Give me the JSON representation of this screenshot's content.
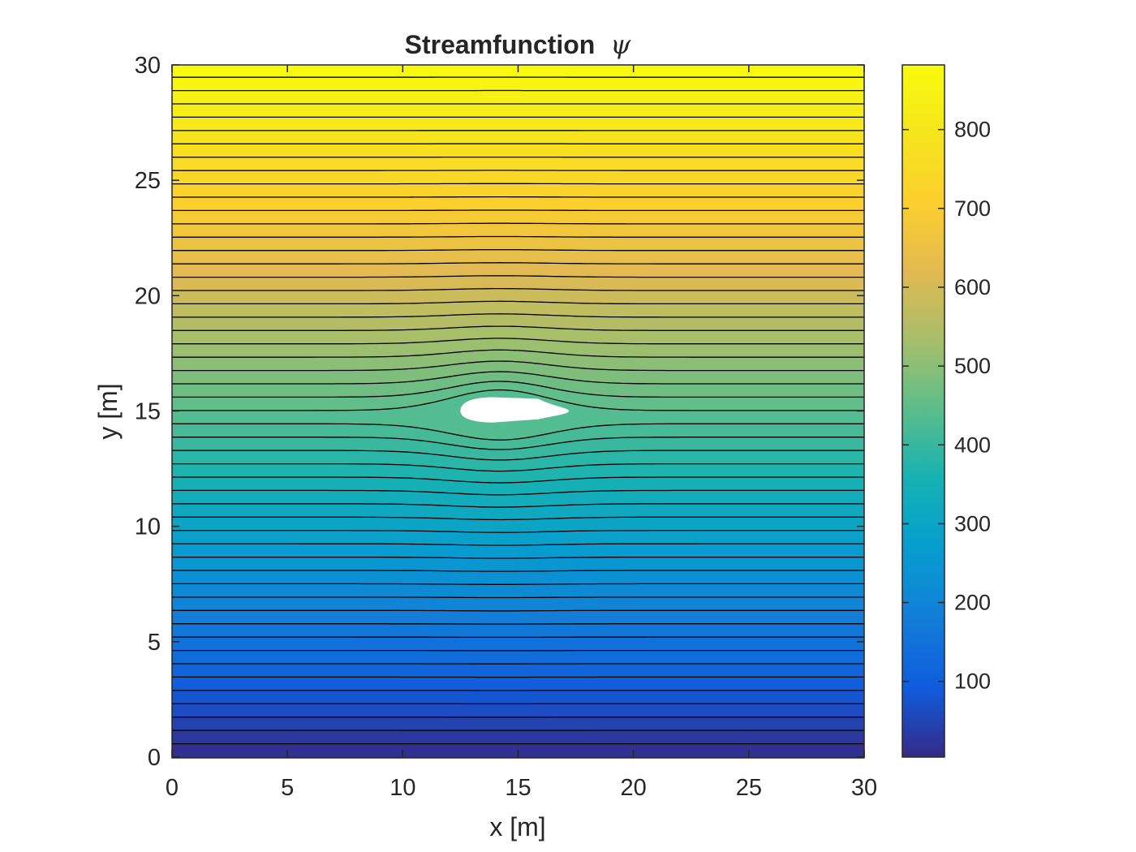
{
  "chart_data": {
    "type": "contour",
    "title": "Streamfunction",
    "title_symbol": "ψ",
    "xlabel": "x [m]",
    "ylabel": "y [m]",
    "xlim": [
      0,
      30
    ],
    "ylim": [
      0,
      30
    ],
    "xticks": [
      0,
      5,
      10,
      15,
      20,
      25,
      30
    ],
    "yticks": [
      0,
      5,
      10,
      15,
      20,
      25,
      30
    ],
    "colormap": "parula",
    "colorbar": {
      "range": [
        4,
        882
      ],
      "ticks": [
        100,
        200,
        300,
        400,
        500,
        600,
        700,
        800
      ],
      "placement": "right"
    },
    "field": {
      "description_free_stream_gradient": 29.25,
      "psi_at_y0": 4,
      "contour_spacing_in_psi": 16.9,
      "obstacle": {
        "x_center": 14.2,
        "y_center": 15,
        "x_extent": [
          12.5,
          17.2
        ],
        "y_extent": [
          14.5,
          15.6
        ]
      }
    },
    "grid": false,
    "colors": {
      "contour_line": "#000000",
      "obstacle_fill": "#ffffff",
      "axis": "#262626"
    }
  }
}
